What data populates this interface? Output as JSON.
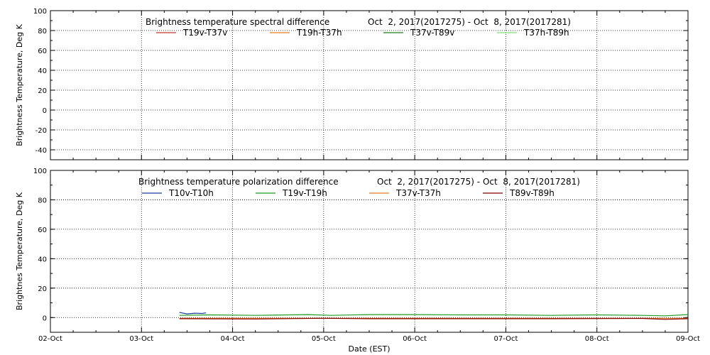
{
  "chart_data": [
    {
      "type": "line",
      "title": "Brightness temperature spectral difference",
      "date_range": "Oct  2, 2017(2017275) - Oct  8, 2017(2017281)",
      "ylabel": "Brightness Temperature, Deg K",
      "xlabel": "",
      "ylim": [
        -50,
        100
      ],
      "yticks": [
        "100",
        "80",
        "60",
        "40",
        "20",
        "0",
        "-20",
        "-40"
      ],
      "yticks_values": [
        100,
        80,
        60,
        40,
        20,
        0,
        -20,
        -40
      ],
      "xlim": [
        "2017-10-02",
        "2017-10-09"
      ],
      "grid": true,
      "legend_position": "top",
      "series": [
        {
          "name": "T19v-T37v",
          "color": "#c0392b",
          "values": []
        },
        {
          "name": "T19h-T37h",
          "color": "#e67e22",
          "values": []
        },
        {
          "name": "T37v-T89v",
          "color": "#1e7d1e",
          "values": []
        },
        {
          "name": "T37h-T89h",
          "color": "#7ee07e",
          "values": []
        }
      ]
    },
    {
      "type": "line",
      "title": "Brightness temperature polarization difference",
      "date_range": "Oct  2, 2017(2017275) - Oct  8, 2017(2017281)",
      "ylabel": "Brightnes Temperature, Deg K",
      "xlabel": "Date (EST)",
      "ylim": [
        -10,
        100
      ],
      "yticks": [
        "100",
        "80",
        "60",
        "40",
        "20",
        "0"
      ],
      "yticks_values": [
        100,
        80,
        60,
        40,
        20,
        0
      ],
      "xlim": [
        "2017-10-02",
        "2017-10-09"
      ],
      "x_ticks": [
        "02-Oct",
        "03-Oct",
        "04-Oct",
        "05-Oct",
        "06-Oct",
        "07-Oct",
        "08-Oct",
        "09-Oct"
      ],
      "grid": true,
      "legend_position": "top",
      "series": [
        {
          "name": "T10v-T10h",
          "color": "#1f3f9f",
          "x": [
            "2017-10-03 10:00",
            "2017-10-03 12:00",
            "2017-10-03 14:00",
            "2017-10-03 16:00",
            "2017-10-03 17:00"
          ],
          "values": [
            3.5,
            2.5,
            3.0,
            2.8,
            3.2
          ]
        },
        {
          "name": "T19v-T19h",
          "color": "#1e9d1e",
          "x": [
            "2017-10-03 10:00",
            "2017-10-03 18:00",
            "2017-10-04 06:00",
            "2017-10-04 20:00",
            "2017-10-05 02:00",
            "2017-10-05 12:00",
            "2017-10-06 00:00",
            "2017-10-06 12:00",
            "2017-10-07 00:00",
            "2017-10-07 12:00",
            "2017-10-08 00:00",
            "2017-10-08 12:00",
            "2017-10-08 18:00",
            "2017-10-09 00:00"
          ],
          "values": [
            1.5,
            1.8,
            1.5,
            2.0,
            1.5,
            2.0,
            2.0,
            1.8,
            1.8,
            1.5,
            1.8,
            1.5,
            1.2,
            2.0
          ]
        },
        {
          "name": "T37v-T37h",
          "color": "#e67e22",
          "x": [
            "2017-10-03 10:00",
            "2017-10-04 12:00",
            "2017-10-05 12:00",
            "2017-10-06 12:00",
            "2017-10-07 12:00",
            "2017-10-08 12:00",
            "2017-10-09 00:00"
          ],
          "values": [
            -0.5,
            -0.5,
            -0.5,
            -0.5,
            -0.5,
            -0.5,
            -0.5
          ]
        },
        {
          "name": "T89v-T89h",
          "color": "#8b0000",
          "x": [
            "2017-10-03 10:00",
            "2017-10-04 06:00",
            "2017-10-05 00:00",
            "2017-10-05 12:00",
            "2017-10-06 12:00",
            "2017-10-07 12:00",
            "2017-10-08 12:00",
            "2017-10-08 18:00",
            "2017-10-09 00:00"
          ],
          "values": [
            -0.8,
            -1.0,
            -0.5,
            -0.8,
            -0.8,
            -0.8,
            -0.6,
            -1.2,
            -0.8
          ]
        }
      ]
    }
  ]
}
